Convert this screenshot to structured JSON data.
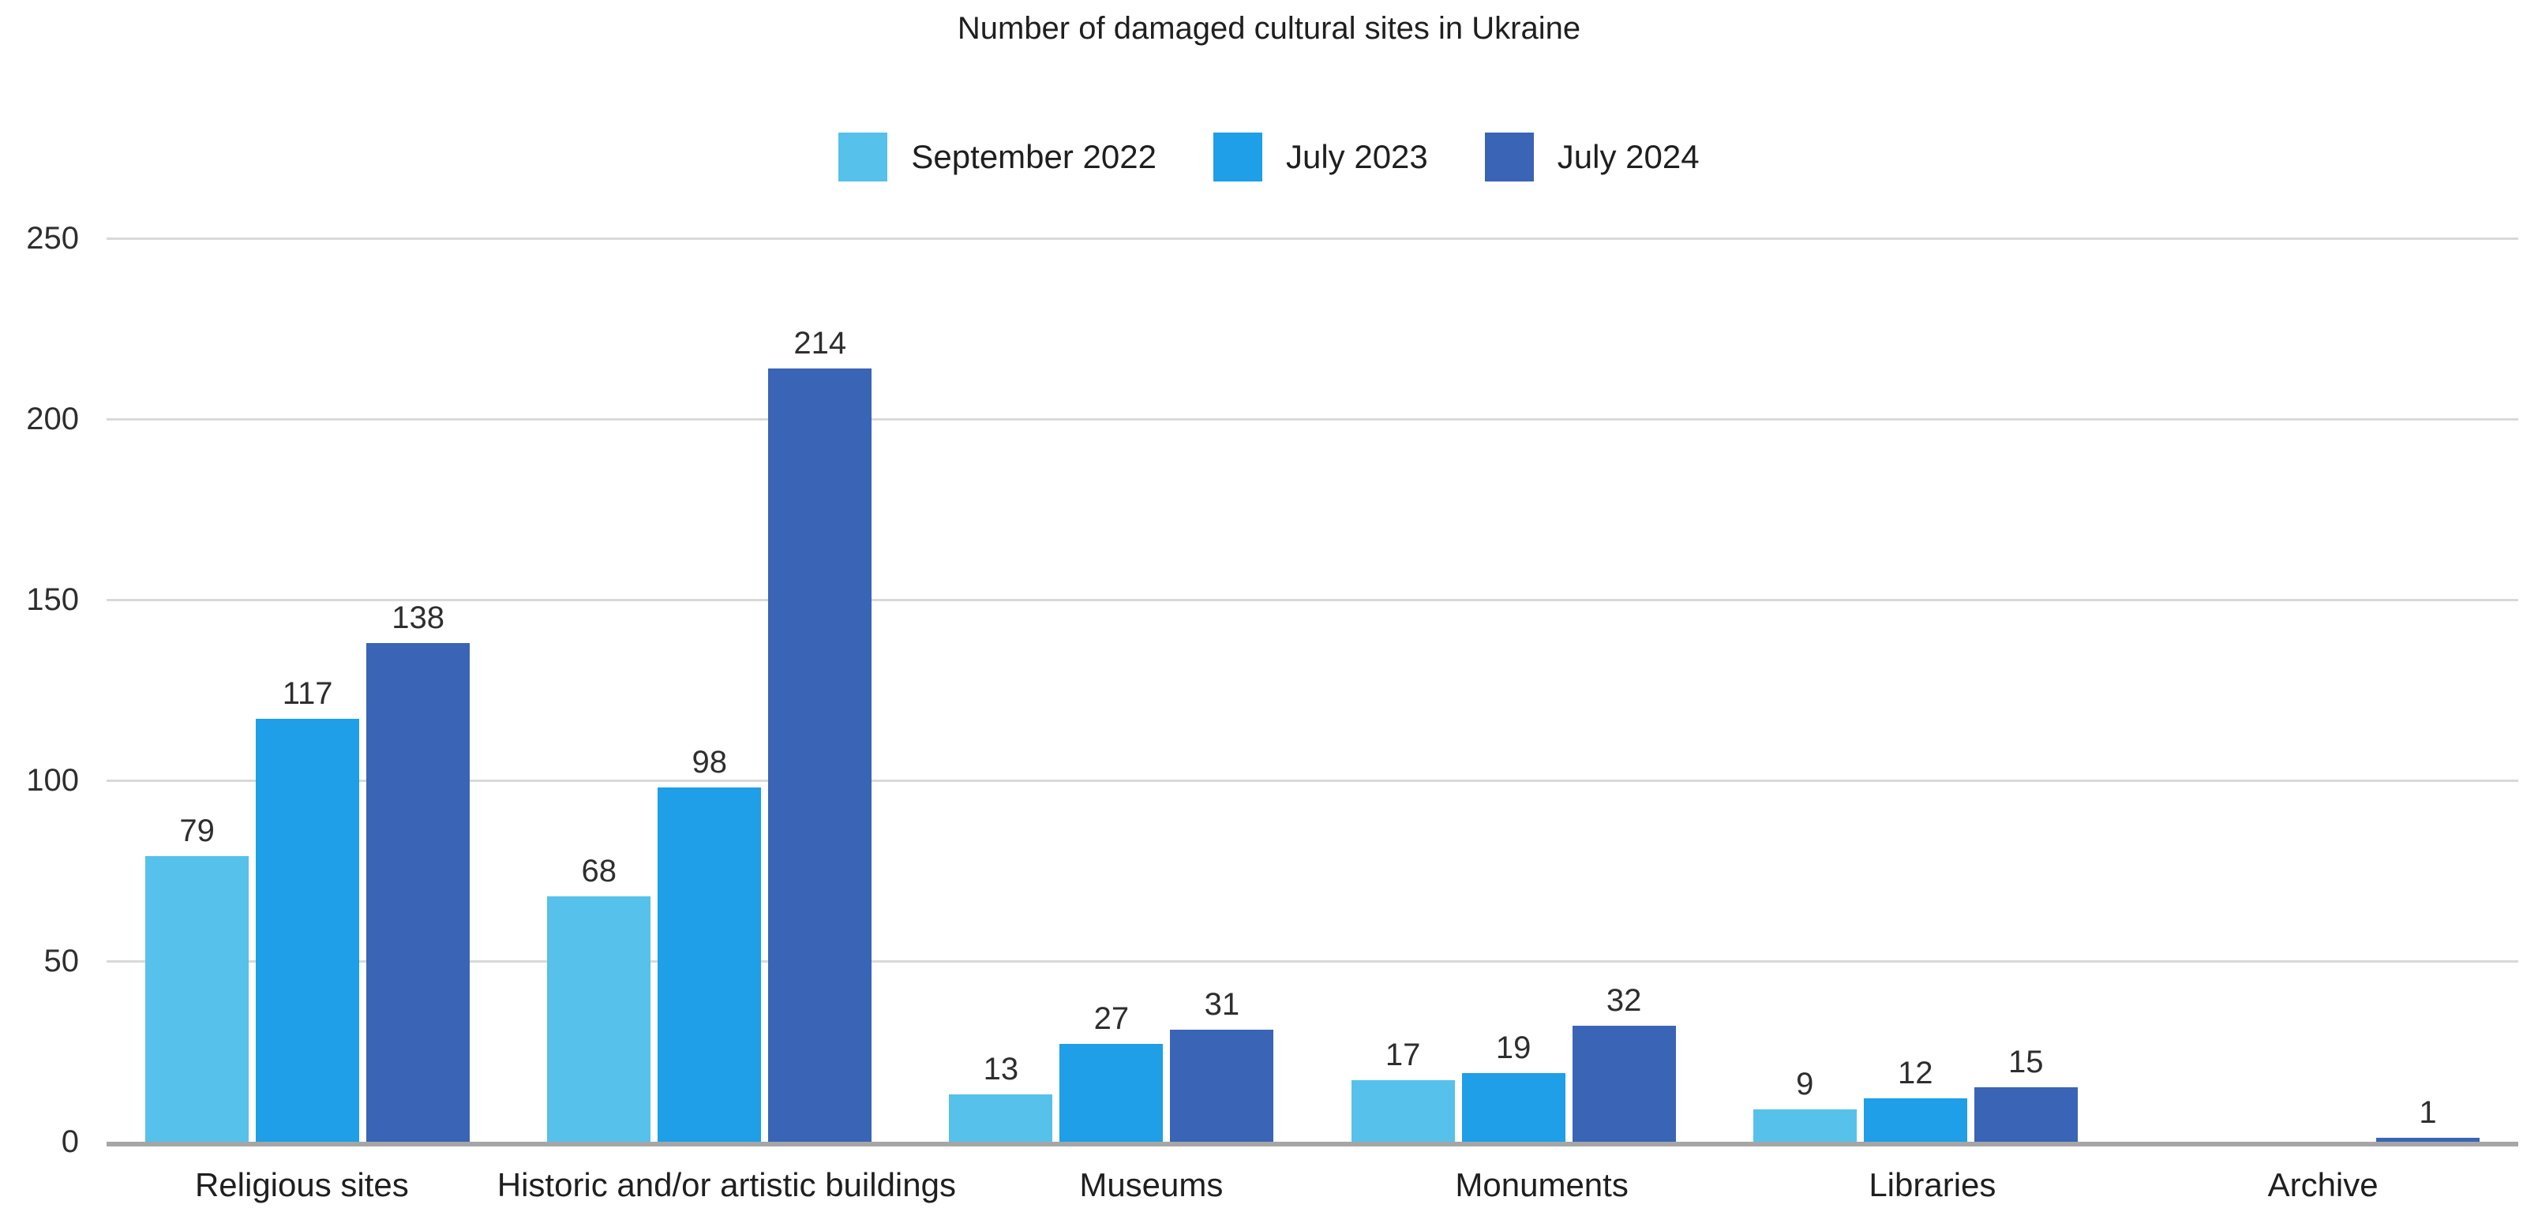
{
  "chart_data": {
    "type": "bar",
    "title": "Number of damaged cultural sites in Ukraine",
    "categories": [
      "Religious sites",
      "Historic and/or artistic buildings",
      "Museums",
      "Monuments",
      "Libraries",
      "Archive"
    ],
    "series": [
      {
        "name": "September 2022",
        "color": "#56C1EA",
        "values": [
          79,
          68,
          13,
          17,
          9,
          0
        ]
      },
      {
        "name": "July 2023",
        "color": "#1E9FE8",
        "values": [
          117,
          98,
          27,
          19,
          12,
          0
        ]
      },
      {
        "name": "July 2024",
        "color": "#3A64B5",
        "values": [
          138,
          214,
          31,
          32,
          15,
          1
        ]
      }
    ],
    "xlabel": "",
    "ylabel": "",
    "ylim": [
      0,
      250
    ],
    "yticks": [
      0,
      50,
      100,
      150,
      200,
      250
    ],
    "grid": true,
    "legend_position": "top",
    "value_labels": true
  },
  "colors": {
    "gridline": "#D9D9D9",
    "baseline": "#A6A6A6",
    "tick_text": "#2e2e2e",
    "title_text": "#1f1f1f"
  }
}
